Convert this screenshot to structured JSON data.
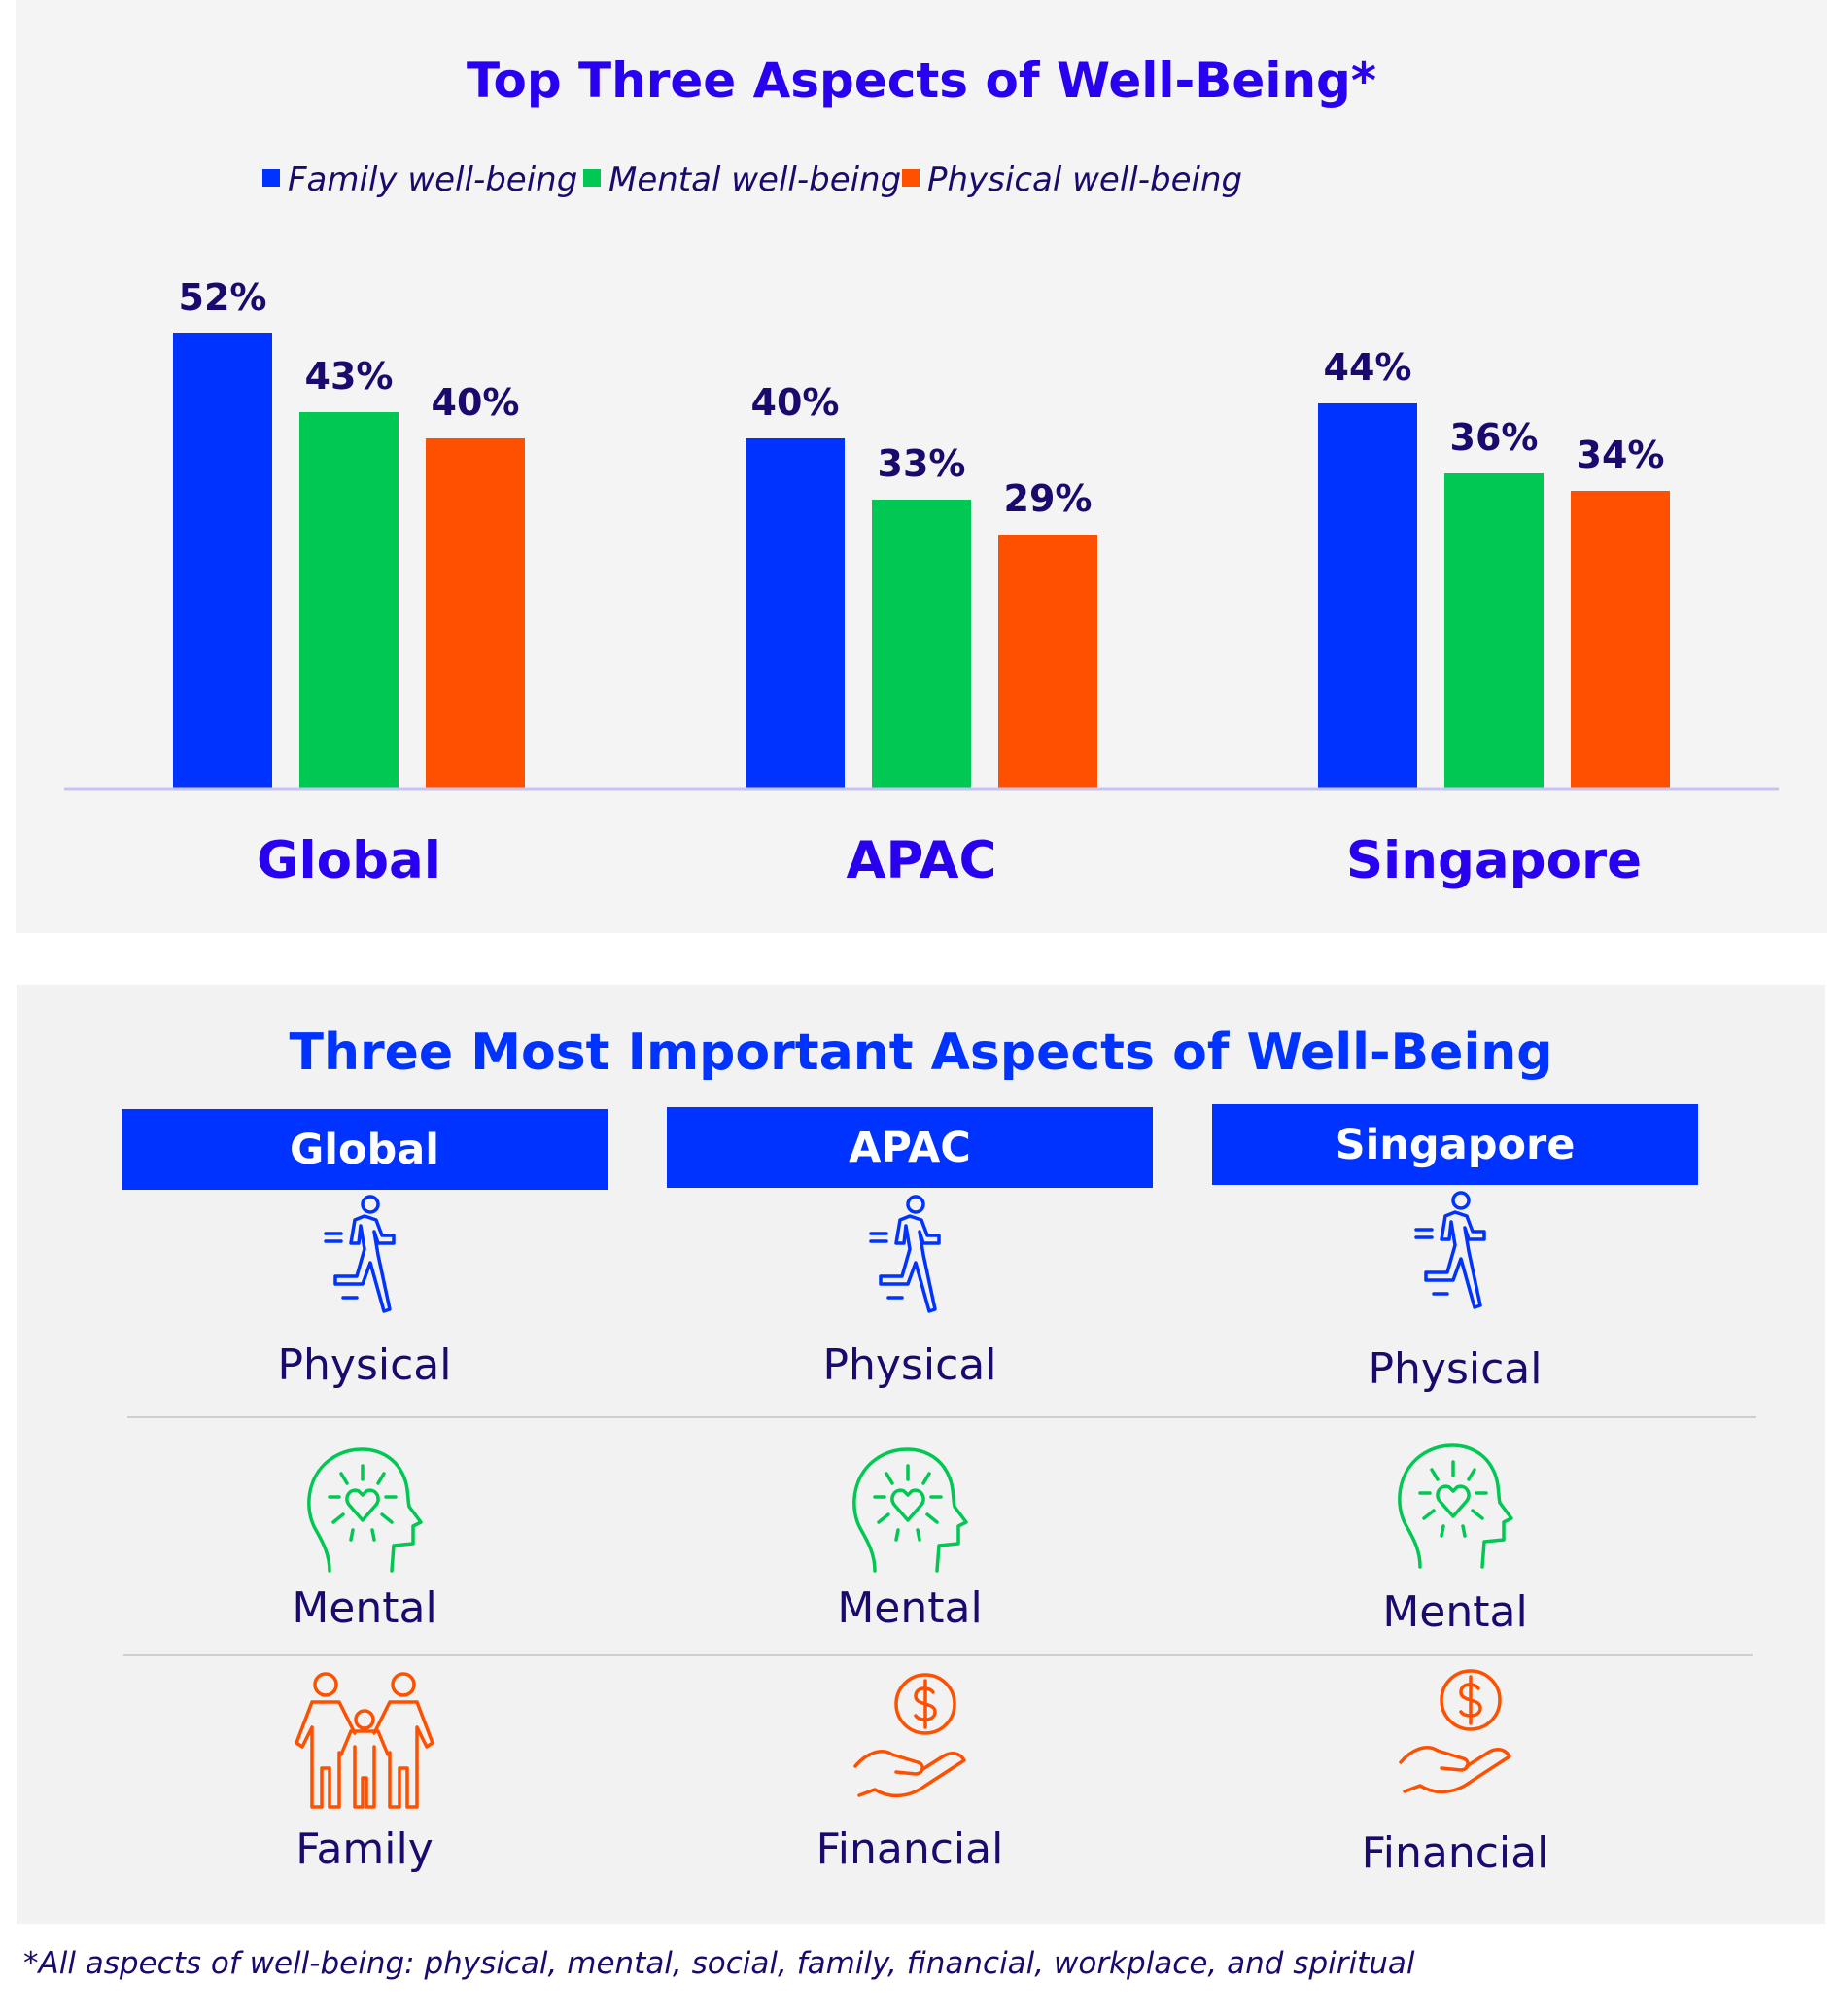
{
  "chart_data": {
    "type": "bar",
    "title": "Top Three Aspects of Well-Being*",
    "categories": [
      "Global",
      "APAC",
      "Singapore"
    ],
    "series": [
      {
        "name": "Family well-being",
        "color": "#0033ff",
        "values": [
          52,
          40,
          44
        ]
      },
      {
        "name": "Mental well-being",
        "color": "#00c853",
        "values": [
          43,
          33,
          36
        ]
      },
      {
        "name": "Physical well-being",
        "color": "#ff5000",
        "values": [
          40,
          29,
          34
        ]
      }
    ],
    "value_suffix": "%",
    "ylim": [
      0,
      60
    ],
    "grid": false,
    "legend": "top-center",
    "xlabel": "",
    "ylabel": ""
  },
  "table": {
    "title": "Three Most Important Aspects of Well-Being",
    "columns": [
      {
        "header": "Global",
        "items": [
          {
            "label": "Physical",
            "icon": "running-person-icon",
            "color": "#0033ff"
          },
          {
            "label": "Mental",
            "icon": "head-heart-icon",
            "color": "#00c853"
          },
          {
            "label": "Family",
            "icon": "family-icon",
            "color": "#ff5000"
          }
        ]
      },
      {
        "header": "APAC",
        "items": [
          {
            "label": "Physical",
            "icon": "running-person-icon",
            "color": "#0033ff"
          },
          {
            "label": "Mental",
            "icon": "head-heart-icon",
            "color": "#00c853"
          },
          {
            "label": "Financial",
            "icon": "hand-coin-icon",
            "color": "#ff5000"
          }
        ]
      },
      {
        "header": "Singapore",
        "items": [
          {
            "label": "Physical",
            "icon": "running-person-icon",
            "color": "#0033ff"
          },
          {
            "label": "Mental",
            "icon": "head-heart-icon",
            "color": "#00c853"
          },
          {
            "label": "Financial",
            "icon": "hand-coin-icon",
            "color": "#ff5000"
          }
        ]
      }
    ]
  },
  "footnote": "*All aspects of well-being: physical, mental, social, family, financial, workplace, and spiritual"
}
